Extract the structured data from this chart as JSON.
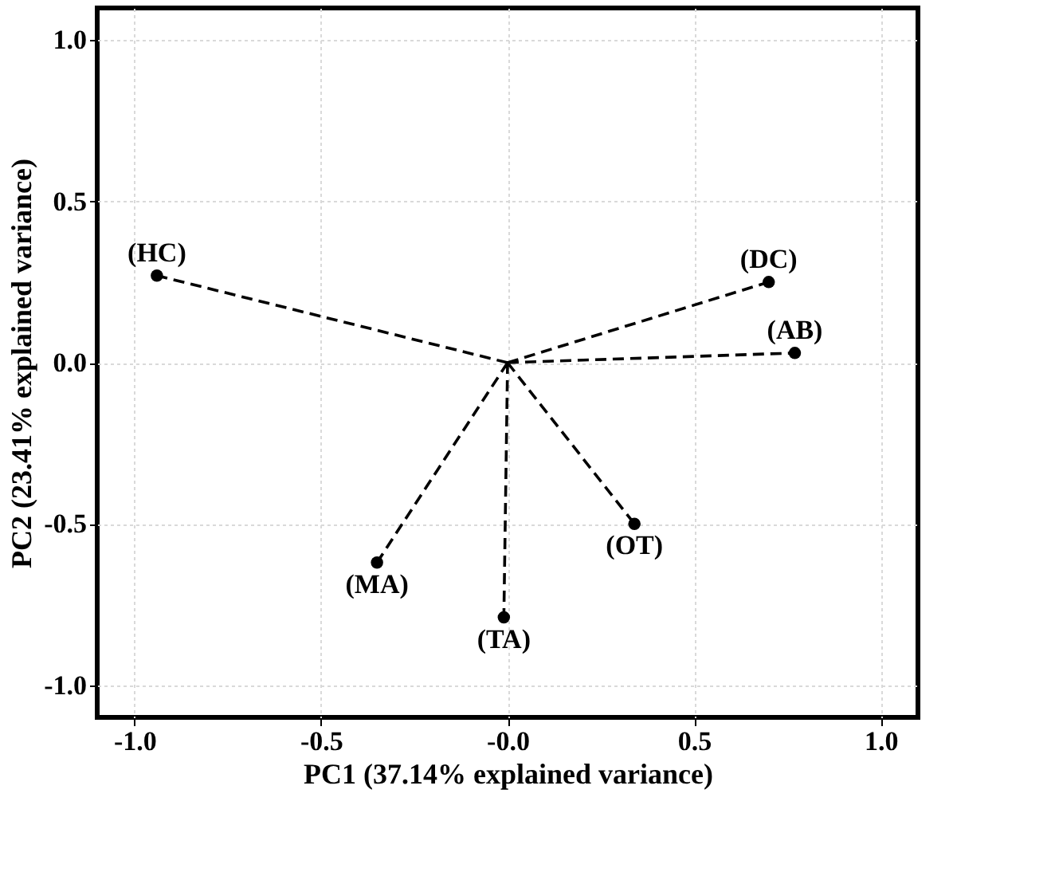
{
  "chart_data": {
    "type": "scatter",
    "xlabel": "PC1 (37.14% explained variance)",
    "ylabel": "PC2 (23.41% explained variance)",
    "xlim": [
      -1.1,
      1.1
    ],
    "ylim": [
      -1.1,
      1.1
    ],
    "xticks": [
      {
        "value": -1.0,
        "label": "-1.0"
      },
      {
        "value": -0.5,
        "label": "-0.5"
      },
      {
        "value": 0,
        "label": "-0.0"
      },
      {
        "value": 0.5,
        "label": "0.5"
      },
      {
        "value": 1.0,
        "label": "1.0"
      }
    ],
    "yticks": [
      {
        "value": -1.0,
        "label": "-1.0"
      },
      {
        "value": -0.5,
        "label": "-0.5"
      },
      {
        "value": 0,
        "label": "0.0"
      },
      {
        "value": 0.5,
        "label": "0.5"
      },
      {
        "value": 1.0,
        "label": "1.0"
      }
    ],
    "grid": true,
    "series": [
      {
        "type": "line",
        "color": "#000000",
        "line_style": "dashed",
        "marker": "none",
        "x": [
          0,
          -0.94,
          null,
          0,
          0.7,
          null,
          0,
          0.77,
          null,
          0,
          0.34,
          null,
          0,
          -0.01,
          null,
          0,
          -0.35
        ],
        "values": [
          0,
          0.27,
          null,
          0,
          0.25,
          null,
          0,
          0.03,
          null,
          0,
          -0.5,
          null,
          0,
          -0.79,
          null,
          0,
          -0.62
        ]
      },
      {
        "color": "#000000",
        "marker": "circle",
        "x": [
          -0.94,
          0.7,
          0.77,
          0.34,
          -0.01,
          -0.35
        ],
        "values": [
          0.27,
          0.25,
          0.03,
          -0.5,
          -0.79,
          -0.62
        ]
      }
    ],
    "annotations": [
      {
        "text": "(HC)",
        "x": -0.94,
        "y": 0.27
      },
      {
        "text": "(DC)",
        "x": 0.7,
        "y": 0.25
      },
      {
        "text": "(AB)",
        "x": 0.77,
        "y": 0.03
      },
      {
        "text": "(OT)",
        "x": 0.34,
        "y": -0.5
      },
      {
        "text": "(TA)",
        "x": -0.01,
        "y": -0.79
      },
      {
        "text": "(MA)",
        "x": -0.35,
        "y": -0.62
      }
    ]
  }
}
